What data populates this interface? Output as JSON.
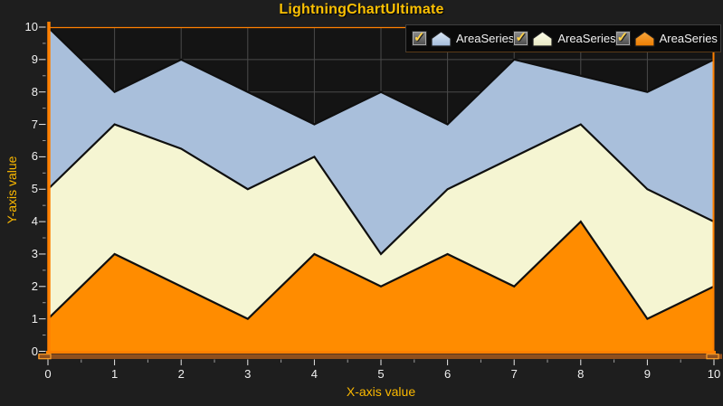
{
  "header": {
    "title": "LightningChartUltimate"
  },
  "chart_data": {
    "type": "area",
    "stacked": false,
    "title": "LightningChartUltimate",
    "xlabel": "X-axis value",
    "ylabel": "Y-axis value",
    "xlim": [
      0,
      10
    ],
    "ylim": [
      0,
      10
    ],
    "x_ticks": [
      0,
      1,
      2,
      3,
      4,
      5,
      6,
      7,
      8,
      9,
      10
    ],
    "y_ticks": [
      0,
      1,
      2,
      3,
      4,
      5,
      6,
      7,
      8,
      9,
      10
    ],
    "grid": true,
    "legend_position": "top-right",
    "x": [
      0,
      1,
      2,
      3,
      4,
      5,
      6,
      7,
      8,
      9,
      10
    ],
    "series": [
      {
        "name": "AreaSeries",
        "fill": "#a9bfdb",
        "icon_gradient": [
          "#dce7f4",
          "#a3bcdc"
        ],
        "values": [
          10,
          8,
          9,
          8,
          7,
          8,
          7,
          9,
          8.5,
          8,
          9
        ]
      },
      {
        "name": "AreaSeries",
        "fill": "#f5f5d2",
        "icon_gradient": [
          "#fcfce9",
          "#e9e9c3"
        ],
        "values": [
          5,
          7,
          6.25,
          5,
          6,
          3,
          5,
          6,
          7,
          5,
          4
        ]
      },
      {
        "name": "AreaSeries",
        "fill": "#ff8c00",
        "icon_gradient": [
          "#f6a73f",
          "#ee7d00"
        ],
        "values": [
          1,
          3,
          2,
          1,
          3,
          2,
          3,
          2,
          4,
          1,
          2
        ]
      }
    ]
  },
  "legend": {
    "items": [
      {
        "label": "AreaSeries",
        "checked": true
      },
      {
        "label": "AreaSeries",
        "checked": true
      },
      {
        "label": "AreaSeries",
        "checked": true
      }
    ]
  },
  "colors": {
    "background": "#1e1e1e",
    "plot_background": "#141414",
    "grid": "#4a4a4a",
    "axis": "#ff8000",
    "title": "#fcc103",
    "axis_label": "#fcb900",
    "tick_label": "#f0f0f0",
    "series_outline": "#0f0f0f",
    "legend_background": "#0a0a0a",
    "legend_border": "#3f3f3f",
    "legend_text": "#f2f2f2",
    "checkbox_check": "#ffd24a",
    "scrollbar": "#8f4f1d",
    "scrollbar_handle": "#ffa028"
  }
}
